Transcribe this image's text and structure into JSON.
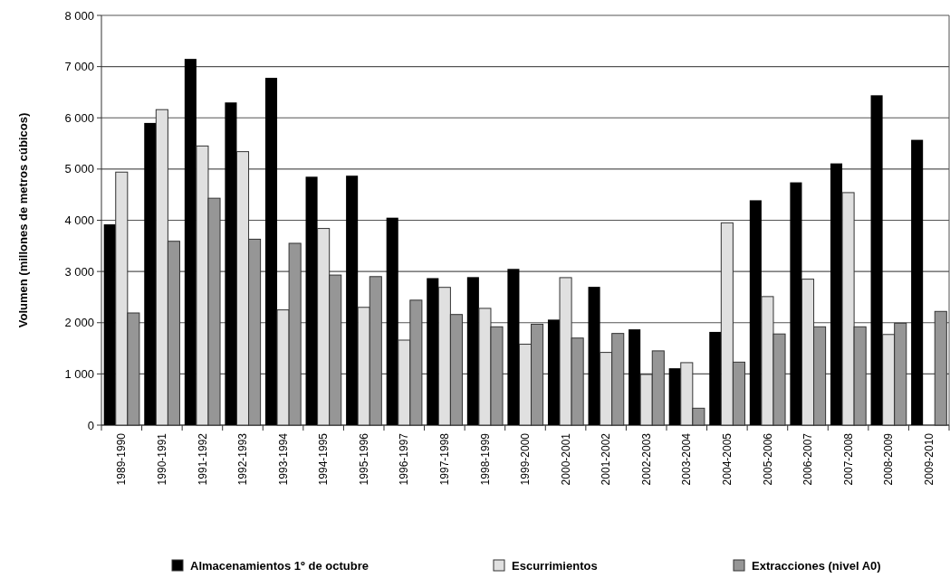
{
  "chart_data": {
    "type": "bar",
    "ylabel": "Volumen (millones de metros cúbicos)",
    "categories": [
      "1989-1990",
      "1990-1991",
      "1991-1992",
      "1992-1993",
      "1993-1994",
      "1994-1995",
      "1995-1996",
      "1996-1997",
      "1997-1998",
      "1998-1999",
      "1999-2000",
      "2000-2001",
      "2001-2002",
      "2002-2003",
      "2003-2004",
      "2004-2005",
      "2005-2006",
      "2006-2007",
      "2007-2008",
      "2008-2009",
      "2009-2010"
    ],
    "series": [
      {
        "name": "Almacenamientos 1º de octubre",
        "color": "#000000",
        "values": [
          3920,
          5900,
          7150,
          6300,
          6780,
          4850,
          4870,
          4050,
          2870,
          2890,
          3050,
          2060,
          2700,
          1870,
          1110,
          1820,
          4390,
          4740,
          5110,
          6440,
          5570
        ]
      },
      {
        "name": "Escurrimientos",
        "color": "#e0e0e0",
        "values": [
          4940,
          6160,
          5450,
          5340,
          2250,
          3840,
          2300,
          1660,
          2690,
          2280,
          1580,
          2880,
          1420,
          990,
          1220,
          3950,
          2510,
          2850,
          4540,
          1770,
          null
        ]
      },
      {
        "name": "Extracciones (nivel A0)",
        "color": "#969696",
        "values": [
          2190,
          3590,
          4430,
          3630,
          3550,
          2930,
          2900,
          2440,
          2160,
          1920,
          1970,
          1700,
          1790,
          1450,
          330,
          1230,
          1780,
          1920,
          1920,
          1990,
          2220
        ]
      }
    ],
    "ylim": [
      0,
      8000
    ],
    "yticks": [
      {
        "value": 0,
        "label": "0"
      },
      {
        "value": 1000,
        "label": "1 000"
      },
      {
        "value": 2000,
        "label": "2 000"
      },
      {
        "value": 3000,
        "label": "3 000"
      },
      {
        "value": 4000,
        "label": "4 000"
      },
      {
        "value": 5000,
        "label": "5 000"
      },
      {
        "value": 6000,
        "label": "6 000"
      },
      {
        "value": 7000,
        "label": "7 000"
      },
      {
        "value": 8000,
        "label": "8 000"
      }
    ],
    "grid": "y",
    "legend": "bottom"
  }
}
